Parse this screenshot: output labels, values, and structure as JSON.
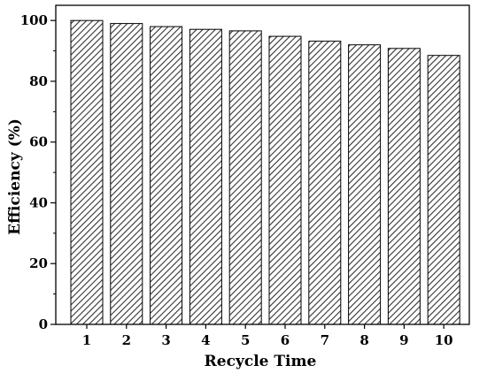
{
  "chart_data": {
    "type": "bar",
    "title": "",
    "xlabel": "Recycle Time",
    "ylabel": "Efficiency (%)",
    "categories": [
      "1",
      "2",
      "3",
      "4",
      "5",
      "6",
      "7",
      "8",
      "9",
      "10"
    ],
    "values": [
      100.0,
      99.0,
      98.0,
      97.1,
      96.6,
      94.8,
      93.2,
      92.0,
      90.8,
      88.5
    ],
    "ylim": [
      0,
      105
    ],
    "yticks": [
      "0",
      "20",
      "40",
      "60",
      "80",
      "100"
    ],
    "grid": false,
    "bar_fill": "hatched",
    "bar_edge_color": "#000000",
    "axis_color": "#000000"
  }
}
